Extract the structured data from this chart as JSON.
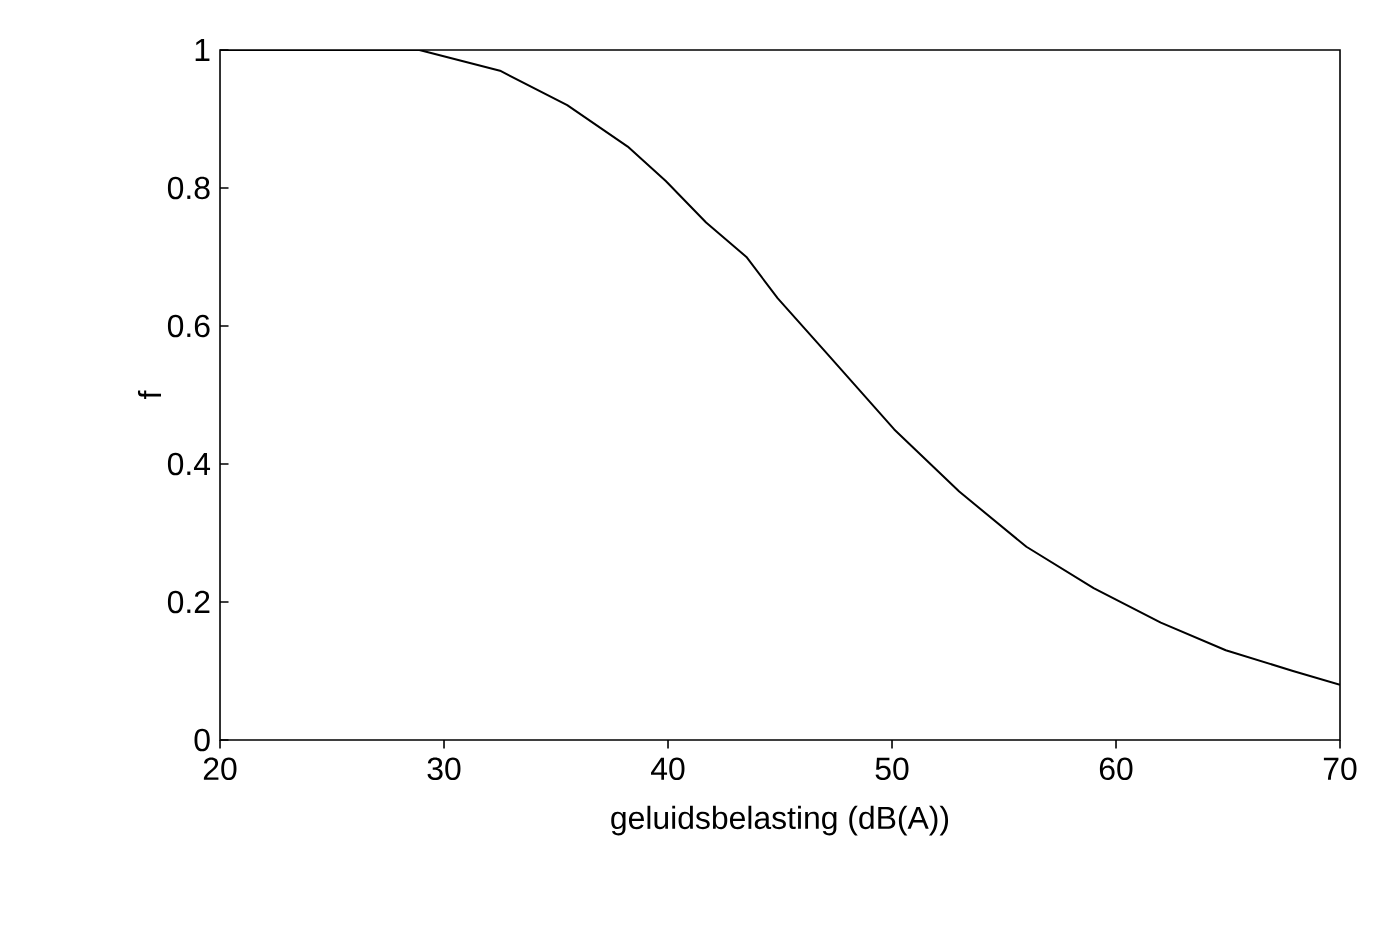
{
  "chart_data": {
    "type": "line",
    "xlabel": "geluidsbelasting (dB(A))",
    "ylabel": "f",
    "x": [
      20,
      25,
      28.9,
      32.5,
      35.5,
      38.2,
      39.9,
      41.7,
      43.5,
      44.9,
      47.1,
      50.1,
      53.0,
      56.0,
      59.0,
      62.0,
      64.9,
      67.9,
      70
    ],
    "series": [
      {
        "color": "#000000",
        "values": [
          1,
          1,
          1,
          0.97,
          0.92,
          0.86,
          0.81,
          0.75,
          0.7,
          0.64,
          0.56,
          0.45,
          0.36,
          0.28,
          0.22,
          0.17,
          0.13,
          0.1,
          0.08
        ]
      }
    ],
    "xlim": [
      20,
      70
    ],
    "ylim": [
      0,
      1
    ],
    "xticks": [
      20,
      30,
      40,
      50,
      60,
      70
    ],
    "yticks": [
      0,
      0.2,
      0.4,
      0.6,
      0.8,
      1
    ],
    "grid": false,
    "marker": "none",
    "line_style": "solid"
  }
}
